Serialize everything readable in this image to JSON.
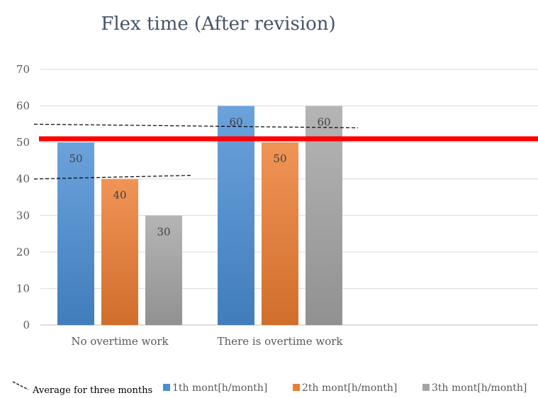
{
  "chart_data": {
    "type": "bar",
    "title": "Flex time (After revision)",
    "categories": [
      "No overtime work",
      "There is overtime work"
    ],
    "series": [
      {
        "name": "1th mont[h/month]",
        "values": [
          50,
          60
        ],
        "color": "#4a8ed4"
      },
      {
        "name": "2th mont[h/month]",
        "values": [
          40,
          50
        ],
        "color": "#ed7d31"
      },
      {
        "name": "3th mont[h/month]",
        "values": [
          30,
          60
        ],
        "color": "#a5a5a5"
      }
    ],
    "ylim": [
      0,
      70
    ],
    "yticks": [
      0,
      10,
      20,
      30,
      40,
      50,
      60,
      70
    ],
    "reference_line": {
      "value": 51,
      "color": "#ff0000"
    },
    "average_lines": [
      {
        "category": "No overtime work",
        "start": 40,
        "end": 41
      },
      {
        "category": "There is overtime work",
        "start": 55,
        "end": 54
      }
    ],
    "average_legend_label": "Average for three months",
    "grid": true,
    "legend_position": "bottom"
  }
}
